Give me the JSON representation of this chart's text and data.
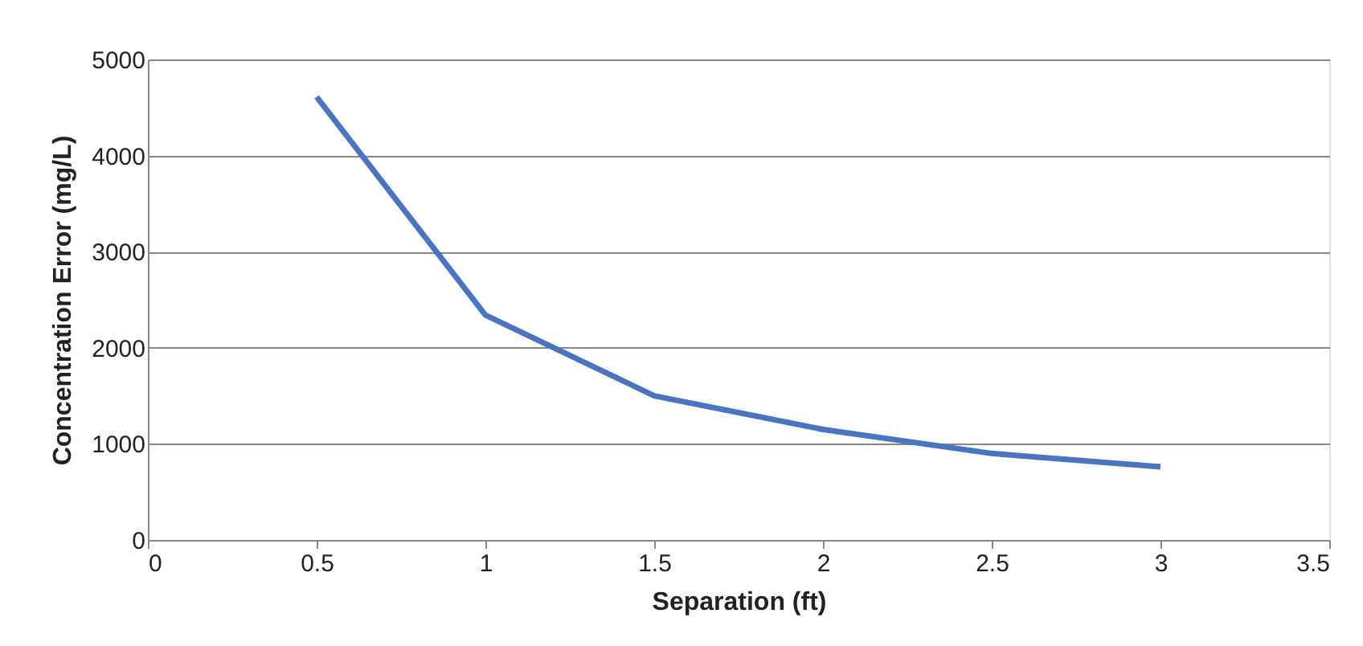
{
  "chart_data": {
    "type": "line",
    "xlabel": "Separation (ft)",
    "ylabel": "Concentration Error (mg/L)",
    "x": [
      0.5,
      1,
      1.5,
      2,
      2.5,
      3
    ],
    "series": [
      {
        "color": "#4a74c0",
        "values": [
          4610,
          2340,
          1500,
          1150,
          900,
          760
        ]
      }
    ],
    "xlim": [
      0,
      3.5
    ],
    "xticks": [
      0,
      0.5,
      1,
      1.5,
      2,
      2.5,
      3,
      3.5
    ],
    "ylim": [
      0,
      5000
    ],
    "yticks": [
      0,
      1000,
      2000,
      3000,
      4000,
      5000
    ],
    "grid": "y",
    "marker": "none",
    "line_style": "solid"
  }
}
